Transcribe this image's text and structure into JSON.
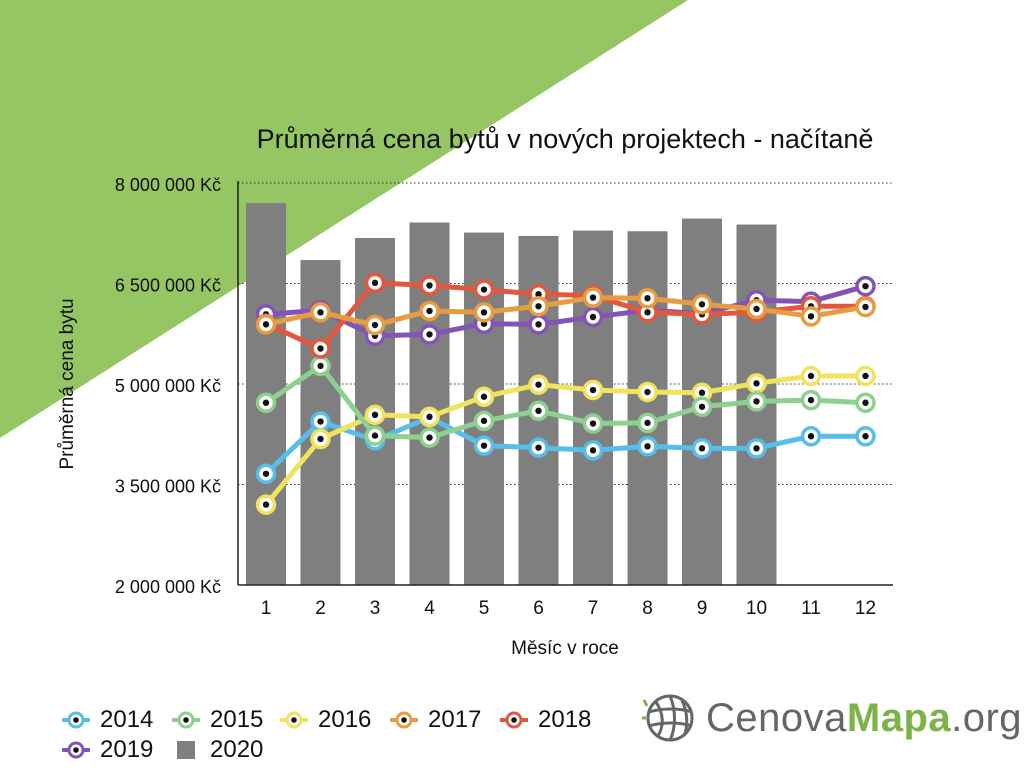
{
  "colors": {
    "background_accent": "#96c564",
    "axis": "#222222",
    "gridline": "#333333"
  },
  "chart_data": {
    "type": "line+bar",
    "title": "Průměrná cena bytů v nových projektech - načítaně",
    "xlabel": "Měsíc v roce",
    "ylabel": "Průměrná cena bytu",
    "categories": [
      "1",
      "2",
      "3",
      "4",
      "5",
      "6",
      "7",
      "8",
      "9",
      "10",
      "11",
      "12"
    ],
    "ylim": [
      2000000,
      8000000
    ],
    "yticks": [
      2000000,
      3500000,
      5000000,
      6500000,
      8000000
    ],
    "ytick_labels": [
      "2 000 000 Kč",
      "3 500 000 Kč",
      "5 000 000 Kč",
      "6 500 000 Kč",
      "8 000 000 Kč"
    ],
    "grid": "horizontal dotted",
    "legend_position": "bottom-left",
    "series": [
      {
        "name": "2020",
        "type": "bar",
        "color": "#7f7f7f",
        "values": [
          7700000,
          6850000,
          7180000,
          7410000,
          7260000,
          7210000,
          7290000,
          7280000,
          7470000,
          7380000,
          null,
          null
        ]
      },
      {
        "name": "2014",
        "type": "line",
        "color": "#57bde9",
        "values": [
          3660000,
          4440000,
          4160000,
          4500000,
          4080000,
          4050000,
          4010000,
          4070000,
          4040000,
          4040000,
          4220000,
          4220000
        ]
      },
      {
        "name": "2015",
        "type": "line",
        "color": "#8ed08f",
        "values": [
          4720000,
          5270000,
          4230000,
          4200000,
          4450000,
          4600000,
          4410000,
          4420000,
          4660000,
          4740000,
          4760000,
          4720000
        ]
      },
      {
        "name": "2016",
        "type": "line",
        "color": "#f1e45d",
        "values": [
          3200000,
          4180000,
          4540000,
          4510000,
          4810000,
          4990000,
          4910000,
          4880000,
          4870000,
          5010000,
          5120000,
          5120000
        ]
      },
      {
        "name": "2017",
        "type": "line",
        "color": "#e89c41",
        "values": [
          5890000,
          6070000,
          5880000,
          6090000,
          6070000,
          6160000,
          6290000,
          6280000,
          6190000,
          6120000,
          6010000,
          6150000
        ]
      },
      {
        "name": "2018",
        "type": "line",
        "color": "#e2583e",
        "values": [
          5900000,
          5530000,
          6510000,
          6470000,
          6410000,
          6340000,
          6320000,
          6070000,
          6040000,
          6070000,
          6160000,
          6160000
        ]
      },
      {
        "name": "2019",
        "type": "line",
        "color": "#8354b7",
        "values": [
          6040000,
          6100000,
          5720000,
          5740000,
          5900000,
          5890000,
          6000000,
          6100000,
          6050000,
          6250000,
          6230000,
          6460000
        ]
      }
    ]
  },
  "legend": {
    "items": [
      {
        "label": "2014",
        "symbol": "line-dot",
        "color": "#57bde9"
      },
      {
        "label": "2015",
        "symbol": "line-dot",
        "color": "#8ed08f"
      },
      {
        "label": "2016",
        "symbol": "line-dot",
        "color": "#f1e45d"
      },
      {
        "label": "2017",
        "symbol": "line-dot",
        "color": "#e89c41"
      },
      {
        "label": "2018",
        "symbol": "line-dot",
        "color": "#e2583e"
      },
      {
        "label": "2019",
        "symbol": "line-dot",
        "color": "#8354b7"
      },
      {
        "label": "2020",
        "symbol": "square",
        "color": "#7f7f7f"
      }
    ]
  },
  "logo": {
    "text_part1": "Cenova",
    "text_part2": "Mapa",
    "text_part3": ".org",
    "icon": "globe-grid-icon",
    "accent_color": "#7bb347"
  }
}
